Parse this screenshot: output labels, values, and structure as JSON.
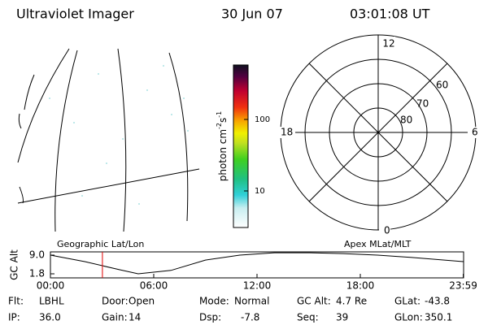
{
  "header": {
    "title": "Ultraviolet Imager",
    "date": "30 Jun 07",
    "time": "03:01:08 UT"
  },
  "colorbar": {
    "label": {
      "base": "photon cm",
      "exp1": "-2",
      "unit2": "s",
      "exp2": "-1"
    },
    "ticks": [
      "100",
      "10"
    ]
  },
  "polar": {
    "mlt_labels": [
      "12",
      "6",
      "0",
      "18"
    ],
    "lat_labels": [
      "60",
      "70",
      "80"
    ]
  },
  "map_label": "Geographic Lat/Lon",
  "polar_label": "Apex MLat/MLT",
  "timeline": {
    "y_label": "GC Alt",
    "yticks": [
      {
        "value": 9.0,
        "label": "9.0"
      },
      {
        "value": 1.8,
        "label": "1.8"
      }
    ],
    "xticks": [
      {
        "value": 0,
        "label": "00:00"
      },
      {
        "value": 6,
        "label": "06:00"
      },
      {
        "value": 12,
        "label": "12:00"
      },
      {
        "value": 18,
        "label": "18:00"
      },
      {
        "value": 23.98,
        "label": "23:59"
      }
    ],
    "x": [
      0,
      2,
      4,
      5.1,
      7,
      9,
      11,
      13,
      15,
      17,
      19,
      21,
      23.98
    ],
    "values": [
      9.0,
      6.5,
      3.4,
      1.8,
      3.1,
      7.1,
      9.0,
      9.9,
      9.9,
      9.6,
      9.0,
      8.1,
      6.5
    ],
    "marker": 3.02
  },
  "footer": [
    [
      {
        "label": "Flt:",
        "value": "LBHL"
      },
      {
        "label": "Door:",
        "value": "Open"
      },
      {
        "label": "Mode:",
        "value": "Normal"
      },
      {
        "label": "GC Alt:",
        "value": "4.7 Re"
      },
      {
        "label": "GLat:",
        "value": "-43.8"
      }
    ],
    [
      {
        "label": "IP:",
        "value": "36.0"
      },
      {
        "label": "Gain:",
        "value": "14"
      },
      {
        "label": "Dsp:",
        "value": "-7.8"
      },
      {
        "label": "Seq:",
        "value": "39"
      },
      {
        "label": "GLon:",
        "value": "350.1"
      }
    ]
  ]
}
